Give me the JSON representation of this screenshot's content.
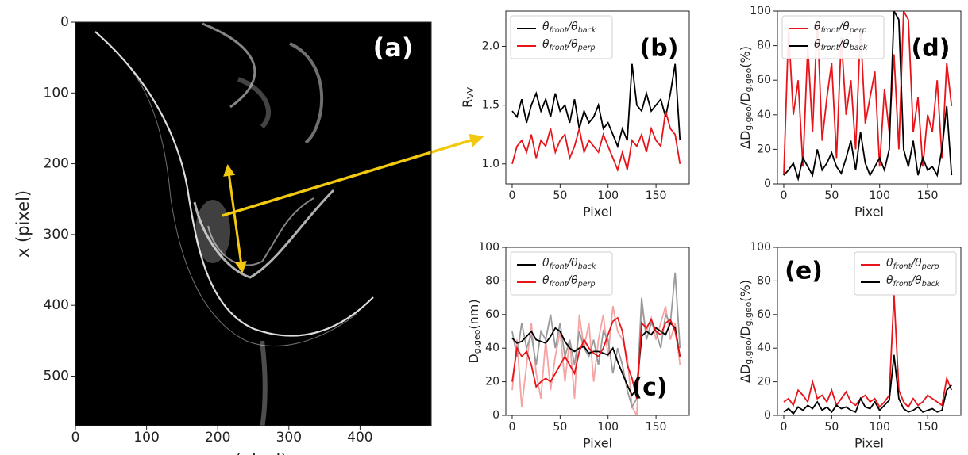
{
  "chart_data": [
    {
      "type": "image",
      "label": "(a)",
      "xlabel": "y (pixel)",
      "ylabel": "x (pixel)",
      "xlim": [
        0,
        500
      ],
      "ylim": [
        570,
        0
      ],
      "xticks": [
        0,
        100,
        200,
        300,
        400
      ],
      "yticks": [
        0,
        100,
        200,
        300,
        400,
        500
      ]
    },
    {
      "type": "line",
      "label": "(b)",
      "xlabel": "Pixel",
      "ylabel": "RVV",
      "legend": "upper left",
      "xlim": [
        -6.6,
        184.7
      ],
      "ylim": [
        0.83,
        2.3
      ],
      "xticks": [
        0,
        50,
        100,
        150
      ],
      "yticks": [
        {
          "value": 1,
          "label": "1.0"
        },
        {
          "value": 1.5,
          "label": "1.5"
        },
        {
          "value": 2,
          "label": "2.0"
        }
      ],
      "x": [
        0,
        5,
        10,
        15,
        20,
        25,
        30,
        35,
        40,
        45,
        50,
        55,
        60,
        65,
        70,
        75,
        80,
        85,
        90,
        95,
        100,
        105,
        110,
        115,
        120,
        125,
        130,
        135,
        140,
        145,
        150,
        155,
        160,
        165,
        170,
        175
      ],
      "series": [
        {
          "name": "θfront/θback",
          "color": "#000000",
          "values": [
            1.45,
            1.4,
            1.55,
            1.35,
            1.5,
            1.6,
            1.45,
            1.55,
            1.4,
            1.6,
            1.45,
            1.5,
            1.35,
            1.55,
            1.3,
            1.45,
            1.35,
            1.4,
            1.5,
            1.3,
            1.35,
            1.25,
            1.15,
            1.3,
            1.2,
            1.85,
            1.5,
            1.45,
            1.6,
            1.45,
            1.5,
            1.55,
            1.4,
            1.6,
            1.85,
            1.2
          ]
        },
        {
          "name": "θfront/θperp",
          "color": "#e8141a",
          "values": [
            1.0,
            1.15,
            1.2,
            1.1,
            1.25,
            1.05,
            1.2,
            1.15,
            1.3,
            1.1,
            1.2,
            1.25,
            1.05,
            1.15,
            1.3,
            1.1,
            1.2,
            1.15,
            1.1,
            1.25,
            1.15,
            1.05,
            0.95,
            1.1,
            0.95,
            1.2,
            1.15,
            1.25,
            1.1,
            1.3,
            1.2,
            1.15,
            1.45,
            1.3,
            1.25,
            1.0
          ]
        }
      ]
    },
    {
      "type": "line",
      "label": "(c)",
      "xlabel": "Pixel",
      "ylabel": "Dg,geo(nm)",
      "legend": "upper left",
      "xlim": [
        -6.6,
        184.7
      ],
      "ylim": [
        0,
        100
      ],
      "xticks": [
        0,
        50,
        100,
        150
      ],
      "yticks": [
        0,
        20,
        40,
        60,
        80,
        100
      ],
      "x": [
        0,
        5,
        10,
        15,
        20,
        25,
        30,
        35,
        40,
        45,
        50,
        55,
        60,
        65,
        70,
        75,
        80,
        85,
        90,
        95,
        100,
        105,
        110,
        115,
        120,
        125,
        130,
        135,
        140,
        145,
        150,
        155,
        160,
        165,
        170,
        175
      ],
      "series": [
        {
          "color": "#f5a3a3",
          "values": [
            15,
            45,
            5,
            30,
            55,
            25,
            10,
            45,
            15,
            35,
            50,
            20,
            45,
            10,
            60,
            40,
            55,
            20,
            45,
            60,
            35,
            65,
            50,
            45,
            35,
            5,
            0,
            65,
            50,
            58,
            45,
            55,
            65,
            45,
            55,
            30
          ]
        },
        {
          "color": "#9a9a9a",
          "values": [
            50,
            35,
            55,
            40,
            48,
            30,
            50,
            45,
            60,
            40,
            55,
            35,
            45,
            30,
            50,
            40,
            35,
            45,
            30,
            50,
            45,
            25,
            40,
            30,
            15,
            5,
            10,
            70,
            45,
            55,
            50,
            40,
            60,
            55,
            85,
            40
          ]
        },
        {
          "name": "θfront/θback",
          "color": "#000000",
          "values": [
            46,
            43,
            44,
            47,
            50,
            45,
            44,
            43,
            47,
            52,
            50,
            44,
            40,
            38,
            40,
            41,
            37,
            38,
            38,
            37,
            36,
            40,
            32,
            25,
            18,
            12,
            16,
            47,
            50,
            48,
            52,
            50,
            48,
            55,
            52,
            35
          ]
        },
        {
          "name": "θfront/θperp",
          "color": "#e8141a",
          "values": [
            20,
            40,
            35,
            38,
            30,
            17,
            20,
            22,
            20,
            25,
            30,
            35,
            30,
            25,
            38,
            45,
            40,
            37,
            35,
            40,
            48,
            56,
            58,
            50,
            30,
            22,
            10,
            55,
            52,
            57,
            50,
            48,
            55,
            57,
            50,
            35
          ]
        }
      ]
    },
    {
      "type": "line",
      "label": "(d)",
      "xlabel": "Pixel",
      "ylabel": "ΔDg,geo/Dg,geo(%)",
      "legend": "upper left",
      "xlim": [
        -6.6,
        184.7
      ],
      "ylim": [
        0,
        100
      ],
      "xticks": [
        0,
        50,
        100,
        150
      ],
      "yticks": [
        0,
        20,
        40,
        60,
        80,
        100
      ],
      "x": [
        0,
        5,
        10,
        15,
        20,
        25,
        30,
        35,
        40,
        45,
        50,
        55,
        60,
        65,
        70,
        75,
        80,
        85,
        90,
        95,
        100,
        105,
        110,
        115,
        120,
        125,
        130,
        135,
        140,
        145,
        150,
        155,
        160,
        165,
        170,
        175
      ],
      "series": [
        {
          "name": "θfront/θperp",
          "color": "#e8141a",
          "values": [
            5,
            90,
            40,
            60,
            10,
            80,
            30,
            95,
            25,
            50,
            70,
            15,
            85,
            40,
            60,
            20,
            90,
            35,
            50,
            65,
            10,
            55,
            30,
            75,
            20,
            100,
            95,
            30,
            50,
            10,
            40,
            30,
            60,
            15,
            70,
            45
          ]
        },
        {
          "name": "θfront/θback",
          "color": "#000000",
          "values": [
            5,
            8,
            12,
            3,
            15,
            10,
            5,
            20,
            8,
            12,
            18,
            10,
            6,
            15,
            25,
            8,
            30,
            12,
            5,
            10,
            15,
            8,
            20,
            100,
            95,
            20,
            10,
            25,
            5,
            15,
            8,
            10,
            5,
            20,
            45,
            5
          ]
        }
      ]
    },
    {
      "type": "line",
      "label": "(e)",
      "xlabel": "Pixel",
      "ylabel": "ΔDg,geo/Dg,geo(%)",
      "legend": "upper right",
      "xlim": [
        -6.6,
        184.7
      ],
      "ylim": [
        0,
        100
      ],
      "xticks": [
        0,
        50,
        100,
        150
      ],
      "yticks": [
        0,
        20,
        40,
        60,
        80,
        100
      ],
      "x": [
        0,
        5,
        10,
        15,
        20,
        25,
        30,
        35,
        40,
        45,
        50,
        55,
        60,
        65,
        70,
        75,
        80,
        85,
        90,
        95,
        100,
        105,
        110,
        115,
        120,
        125,
        130,
        135,
        140,
        145,
        150,
        155,
        160,
        165,
        170,
        175
      ],
      "series": [
        {
          "name": "θfront/θperp",
          "color": "#e8141a",
          "values": [
            8,
            10,
            6,
            15,
            12,
            8,
            20,
            10,
            12,
            8,
            15,
            6,
            10,
            14,
            8,
            6,
            10,
            12,
            8,
            10,
            5,
            8,
            12,
            72,
            15,
            8,
            5,
            10,
            6,
            8,
            12,
            10,
            8,
            6,
            22,
            15
          ]
        },
        {
          "name": "θfront/θback",
          "color": "#000000",
          "values": [
            2,
            4,
            1,
            5,
            3,
            6,
            4,
            8,
            3,
            5,
            2,
            6,
            4,
            5,
            3,
            2,
            10,
            5,
            4,
            8,
            3,
            6,
            9,
            36,
            10,
            4,
            2,
            3,
            5,
            2,
            3,
            4,
            2,
            3,
            15,
            18
          ]
        }
      ]
    }
  ]
}
